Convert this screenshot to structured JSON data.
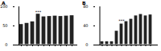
{
  "chart_data": [
    {
      "type": "bar",
      "title": "A",
      "categories": [
        null,
        null,
        null,
        null,
        null,
        null,
        null,
        null,
        null,
        null
      ],
      "values": [
        55,
        58,
        62,
        82,
        75,
        76,
        77,
        76,
        77,
        78
      ],
      "color": "#222222",
      "ylim": [
        0,
        100
      ],
      "yticks": [
        0,
        50,
        100
      ],
      "grid": false,
      "tick_labels": "y",
      "annotations": [
        {
          "text": "***",
          "index": 3,
          "y": 86
        }
      ]
    },
    {
      "type": "bar",
      "title": "B",
      "categories": [
        null,
        null,
        null,
        null,
        null,
        null,
        null,
        null,
        null,
        null,
        null
      ],
      "values": [
        8,
        8,
        8,
        30,
        45,
        50,
        55,
        62,
        65,
        62,
        64
      ],
      "color": "#222222",
      "ylim": [
        0,
        80
      ],
      "yticks": [
        0,
        40,
        80
      ],
      "grid": false,
      "tick_labels": "y",
      "annotations": [
        {
          "text": "***",
          "index": 4,
          "y": 50
        }
      ]
    }
  ]
}
